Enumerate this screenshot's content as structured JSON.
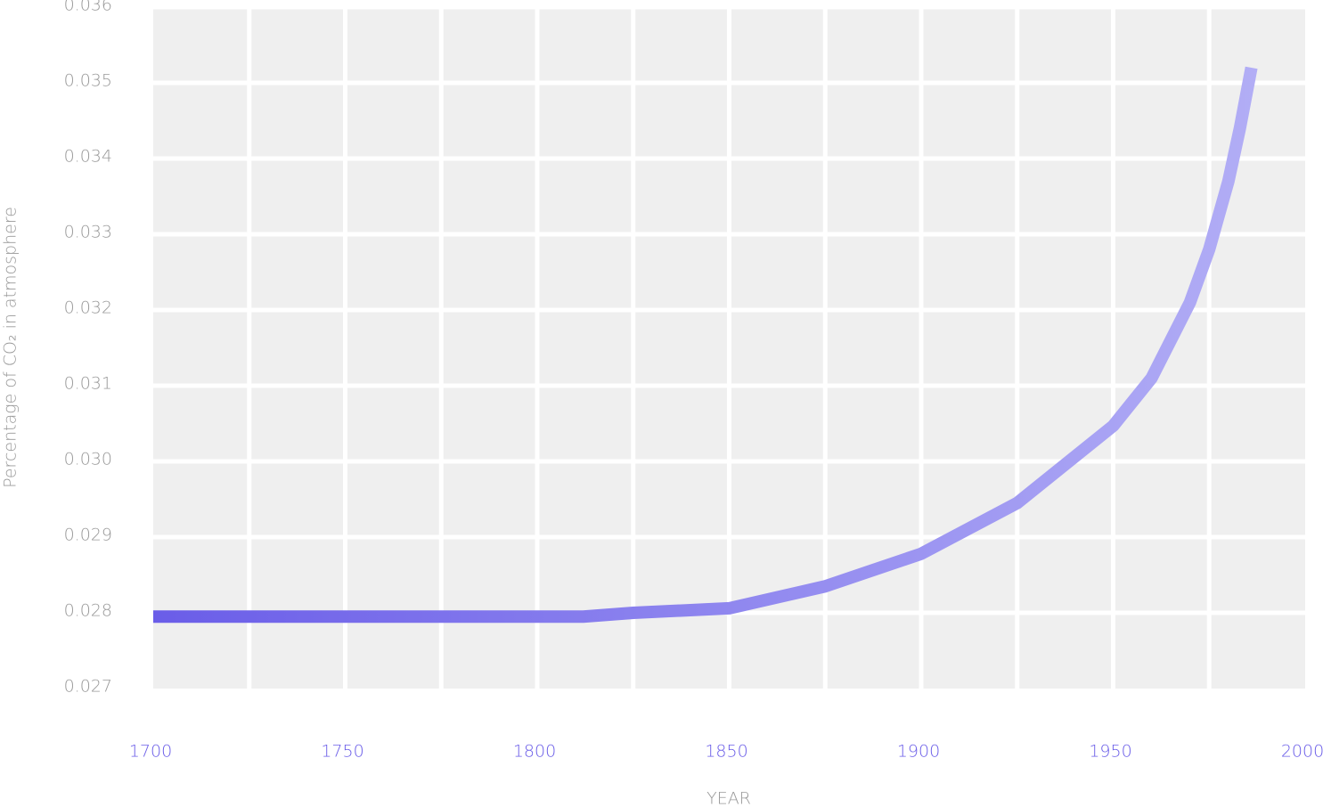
{
  "chart_data": {
    "type": "line",
    "y_label": "Percentage of CO₂ in atmosphere",
    "x_label": "YEAR",
    "x": [
      1700,
      1750,
      1800,
      1812,
      1825,
      1850,
      1875,
      1900,
      1925,
      1950,
      1960,
      1970,
      1975,
      1980,
      1983,
      1986
    ],
    "series": [
      {
        "color": [
          "#6a5de8",
          "#b5b1f6"
        ],
        "values": [
          0.02795,
          0.02795,
          0.02795,
          0.02795,
          0.028,
          0.02806,
          0.02835,
          0.02878,
          0.02945,
          0.03047,
          0.0311,
          0.0321,
          0.0328,
          0.0337,
          0.0344,
          0.0352
        ]
      }
    ],
    "xlim": [
      1700,
      2000
    ],
    "xticks": [
      1700,
      1750,
      1800,
      1850,
      1900,
      1950,
      2000
    ],
    "x_minor_ticks": [
      1725,
      1775,
      1825,
      1875,
      1925,
      1975
    ],
    "ylim": [
      0.027,
      0.036
    ],
    "yticks": [
      0.027,
      0.028,
      0.029,
      {
        "value": 0.03,
        "label": "0.030"
      },
      0.031,
      0.032,
      0.033,
      0.034,
      0.035,
      0.036
    ],
    "grid": true
  }
}
